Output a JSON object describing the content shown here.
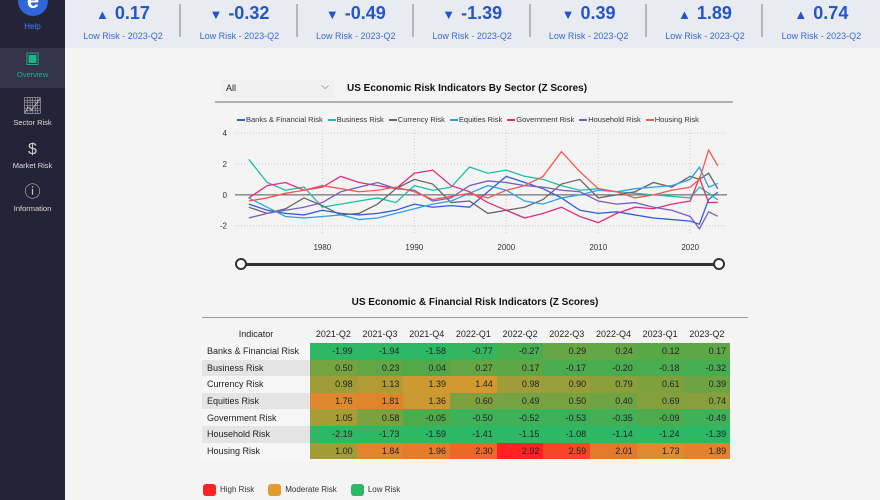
{
  "sidebar": {
    "help": "Help",
    "items": [
      {
        "label": "Overview",
        "icon": "presentation-icon",
        "active": true
      },
      {
        "label": "Sector Risk",
        "icon": "line-chart-icon"
      },
      {
        "label": "Market Risk",
        "icon": "dollar-icon"
      },
      {
        "label": "Information",
        "icon": "info-icon"
      }
    ]
  },
  "kpis": [
    {
      "value": "0.17",
      "dir": "up",
      "label": "Low Risk - 2023-Q2"
    },
    {
      "value": "-0.32",
      "dir": "down",
      "label": "Low Risk - 2023-Q2"
    },
    {
      "value": "-0.49",
      "dir": "down",
      "label": "Low Risk - 2023-Q2"
    },
    {
      "value": "-1.39",
      "dir": "down",
      "label": "Low Risk - 2023-Q2"
    },
    {
      "value": "0.39",
      "dir": "down",
      "label": "Low Risk - 2023-Q2"
    },
    {
      "value": "1.89",
      "dir": "up",
      "label": "Low Risk - 2023-Q2"
    },
    {
      "value": "0.74",
      "dir": "up",
      "label": "Low Risk - 2023-Q2"
    }
  ],
  "filter": {
    "selected": "All"
  },
  "chart_data": {
    "type": "line",
    "title": "US Economic Risk Indicators By Sector (Z Scores)",
    "x": [
      1972,
      1974,
      1976,
      1978,
      1980,
      1982,
      1984,
      1986,
      1988,
      1990,
      1992,
      1994,
      1996,
      1998,
      2000,
      2002,
      2004,
      2006,
      2008,
      2010,
      2012,
      2014,
      2016,
      2018,
      2020,
      2021,
      2022,
      2023
    ],
    "yticks": [
      4,
      2,
      0,
      -2
    ],
    "xticks": [
      1980,
      1990,
      2000,
      2010,
      2020
    ],
    "ylim": [
      -2.6,
      4.2
    ],
    "xlim": [
      1970.5,
      2024
    ],
    "series": [
      {
        "name": "Banks & Financial Risk",
        "color": "#2f5fd8",
        "values": [
          -0.6,
          -1.0,
          -1.2,
          -1.3,
          -1.0,
          -1.2,
          -1.3,
          -1.2,
          -1.0,
          -0.6,
          -0.8,
          -0.7,
          -0.8,
          0.2,
          1.2,
          0.8,
          0.4,
          -0.2,
          -1.0,
          -1.2,
          -1.1,
          -1.3,
          -1.5,
          -1.6,
          -1.7,
          -1.9,
          -0.3,
          0.17
        ]
      },
      {
        "name": "Business Risk",
        "color": "#1fbfa6",
        "values": [
          2.3,
          0.8,
          0.3,
          0.5,
          -0.8,
          -0.6,
          -0.4,
          -0.2,
          -0.5,
          0.6,
          0.3,
          0.5,
          1.8,
          1.4,
          1.6,
          1.2,
          1.0,
          0.6,
          0.3,
          0.4,
          0.2,
          0.1,
          0.0,
          -0.1,
          -0.2,
          0.5,
          0.1,
          -0.32
        ]
      },
      {
        "name": "Currency Risk",
        "color": "#666666",
        "values": [
          -0.8,
          -1.2,
          -0.9,
          -0.2,
          -0.7,
          -1.3,
          -1.2,
          -0.6,
          0.4,
          1.0,
          0.7,
          -0.5,
          -0.4,
          -1.2,
          -1.0,
          -0.8,
          -0.3,
          0.7,
          1.0,
          -0.2,
          0.0,
          0.2,
          0.8,
          0.5,
          1.2,
          1.0,
          1.4,
          0.39
        ]
      },
      {
        "name": "Equities Risk",
        "color": "#2ea0f0",
        "values": [
          -0.2,
          -0.8,
          -1.4,
          -1.5,
          -1.4,
          -1.3,
          -1.6,
          -1.5,
          -1.2,
          -0.9,
          -0.6,
          -0.4,
          0.1,
          0.6,
          0.3,
          -0.4,
          -0.6,
          -0.2,
          0.0,
          0.3,
          0.2,
          0.4,
          0.5,
          0.6,
          1.0,
          1.8,
          0.5,
          0.74
        ]
      },
      {
        "name": "Government Risk",
        "color": "#e0307a",
        "values": [
          -0.2,
          0.6,
          0.8,
          0.3,
          0.5,
          1.2,
          0.8,
          0.6,
          0.4,
          1.4,
          1.6,
          0.6,
          0.2,
          -0.5,
          -1.0,
          -1.5,
          -1.2,
          -0.8,
          -1.4,
          -1.8,
          -1.2,
          -0.8,
          -0.9,
          -0.6,
          -0.4,
          1.1,
          -0.5,
          -0.49
        ]
      },
      {
        "name": "Household Risk",
        "color": "#7a5cc0",
        "values": [
          -1.5,
          -1.2,
          -1.0,
          -0.8,
          -0.5,
          0.2,
          0.5,
          0.8,
          0.4,
          0.3,
          -0.4,
          -0.2,
          0.6,
          0.9,
          0.8,
          0.6,
          0.5,
          0.3,
          0.2,
          -0.4,
          -0.6,
          -0.5,
          -0.8,
          -1.0,
          -1.4,
          -2.2,
          -1.1,
          -1.39
        ]
      },
      {
        "name": "Housing Risk",
        "color": "#f2584f",
        "values": [
          -0.4,
          -0.2,
          0.1,
          0.3,
          0.6,
          0.4,
          0.2,
          0.3,
          0.5,
          0.2,
          -0.3,
          -0.1,
          0.1,
          -0.2,
          0.3,
          0.6,
          1.2,
          2.8,
          1.5,
          0.4,
          0.2,
          -0.2,
          0.0,
          0.3,
          0.5,
          1.0,
          2.9,
          1.89
        ]
      }
    ]
  },
  "table": {
    "title": "US Economic & Financial Risk Indicators (Z Scores)",
    "header": "Indicator",
    "columns": [
      "2021-Q2",
      "2021-Q3",
      "2021-Q4",
      "2022-Q1",
      "2022-Q2",
      "2022-Q3",
      "2022-Q4",
      "2023-Q1",
      "2023-Q2"
    ],
    "rows": [
      {
        "name": "Banks & Financial Risk",
        "values": [
          "-1.99",
          "-1.94",
          "-1.58",
          "-0.77",
          "-0.27",
          "0.29",
          "0.24",
          "0.12",
          "0.17"
        ]
      },
      {
        "name": "Business Risk",
        "values": [
          "0.50",
          "0.23",
          "0.04",
          "0.27",
          "0.17",
          "-0.17",
          "-0.20",
          "-0.18",
          "-0.32"
        ]
      },
      {
        "name": "Currency Risk",
        "values": [
          "0.98",
          "1.13",
          "1.39",
          "1.44",
          "0.98",
          "0.90",
          "0.79",
          "0.61",
          "0.39"
        ]
      },
      {
        "name": "Equities Risk",
        "values": [
          "1.76",
          "1.81",
          "1.36",
          "0.60",
          "0.49",
          "0.50",
          "0.40",
          "0.69",
          "0.74"
        ]
      },
      {
        "name": "Government Risk",
        "values": [
          "1.05",
          "0.58",
          "-0.05",
          "-0.50",
          "-0.52",
          "-0.53",
          "-0.35",
          "-0.09",
          "-0.49"
        ]
      },
      {
        "name": "Household Risk",
        "values": [
          "-2.19",
          "-1.73",
          "-1.59",
          "-1.41",
          "-1.15",
          "-1.08",
          "-1.14",
          "-1.24",
          "-1.39"
        ]
      },
      {
        "name": "Housing Risk",
        "values": [
          "1.00",
          "1.84",
          "1.96",
          "2.30",
          "2.92",
          "2.59",
          "2.01",
          "1.73",
          "1.89"
        ]
      }
    ]
  },
  "risk_legend": [
    {
      "label": "High Risk",
      "color": "#ff2222"
    },
    {
      "label": "Moderate Risk",
      "color": "#e39a30"
    },
    {
      "label": "Low Risk",
      "color": "#2db865"
    }
  ]
}
